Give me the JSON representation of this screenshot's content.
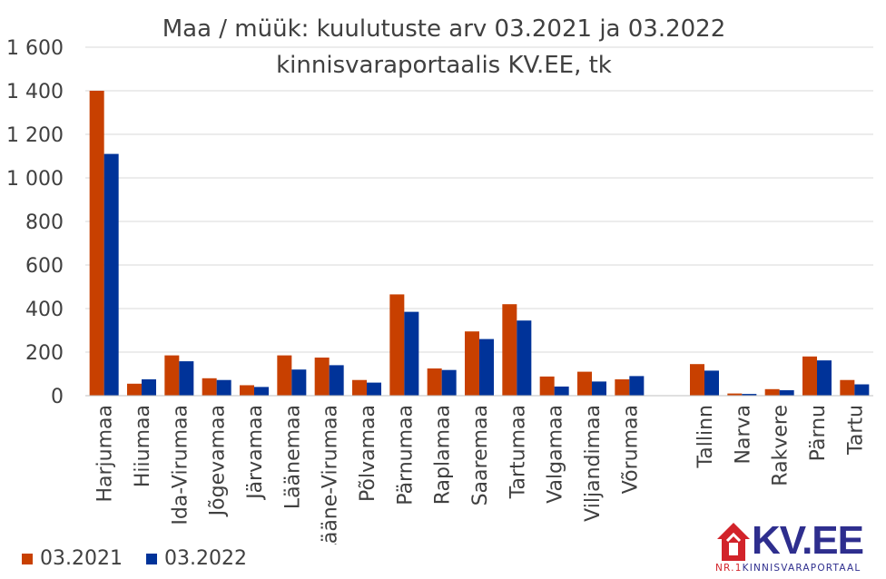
{
  "colors": {
    "series_2021": "#C84000",
    "series_2022": "#003399",
    "grid": "#D9D9D9",
    "text": "#404040"
  },
  "logo": {
    "text": "KV.EE",
    "tag_prefix": "NR.1",
    "tag_rest": "KINNISVARAPORTAAL"
  },
  "chart_data": {
    "type": "bar",
    "title": "Maa / müük: kuulutuste arv 03.2021 ja 03.2022",
    "subtitle": "kinnisvaraportaalis KV.EE, tk",
    "ylim": [
      0,
      1600
    ],
    "yticks": [
      0,
      200,
      400,
      600,
      800,
      1000,
      1200,
      1400,
      1600
    ],
    "ytick_labels": [
      "0",
      "200",
      "400",
      "600",
      "800",
      "1 000",
      "1 200",
      "1 400",
      "1 600"
    ],
    "grid": true,
    "legend_position": "bottom-left",
    "categories": [
      "Harjumaa",
      "Hiiumaa",
      "Ida-Virumaa",
      "Jõgevamaa",
      "Järvamaa",
      "Läänemaa",
      "Lääne-Virumaa",
      "Põlvamaa",
      "Pärnumaa",
      "Raplamaa",
      "Saaremaa",
      "Tartumaa",
      "Valgamaa",
      "Viljandimaa",
      "Võrumaa",
      "",
      "Tallinn",
      "Narva",
      "Rakvere",
      "Pärnu",
      "Tartu"
    ],
    "series": [
      {
        "name": "03.2021",
        "values": [
          1400,
          55,
          185,
          80,
          48,
          185,
          175,
          72,
          465,
          125,
          295,
          420,
          88,
          110,
          75,
          null,
          145,
          10,
          30,
          180,
          72
        ]
      },
      {
        "name": "03.2022",
        "values": [
          1110,
          75,
          158,
          72,
          40,
          120,
          140,
          60,
          385,
          118,
          260,
          345,
          42,
          65,
          90,
          null,
          115,
          8,
          25,
          162,
          52
        ]
      }
    ]
  }
}
